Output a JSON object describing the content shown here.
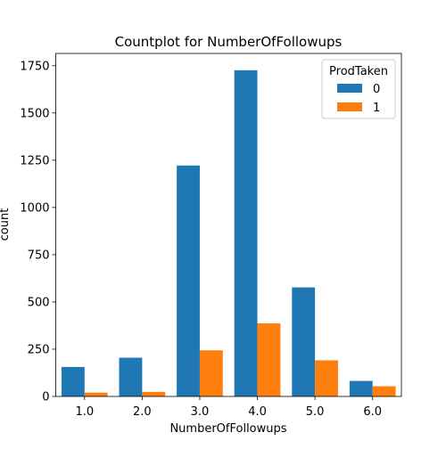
{
  "chart_data": {
    "type": "bar",
    "title": "Countplot for NumberOfFollowups",
    "xlabel": "NumberOfFollowups",
    "ylabel": "count",
    "categories": [
      "1.0",
      "2.0",
      "3.0",
      "4.0",
      "5.0",
      "6.0"
    ],
    "series": [
      {
        "name": "0",
        "color": "#1f77b4",
        "values": [
          156,
          205,
          1222,
          1726,
          577,
          82
        ]
      },
      {
        "name": "1",
        "color": "#ff7f0e",
        "values": [
          20,
          24,
          244,
          387,
          191,
          54
        ]
      }
    ],
    "ylim": [
      0,
      1815
    ],
    "yticks": [
      0,
      250,
      500,
      750,
      1000,
      1250,
      1500,
      1750
    ],
    "ytick_labels": [
      "0",
      "250",
      "500",
      "750",
      "1000",
      "1250",
      "1500",
      "1750"
    ],
    "legend": {
      "title": "ProdTaken",
      "position": "top-right"
    },
    "grid": false
  }
}
